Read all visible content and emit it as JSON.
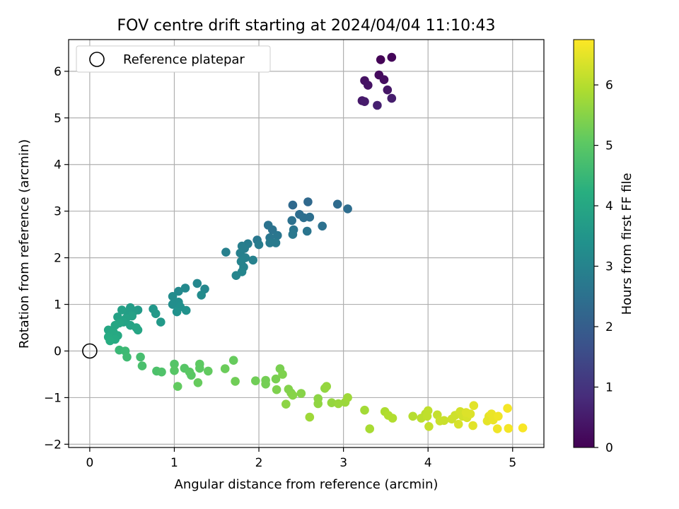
{
  "chart_data": {
    "type": "scatter",
    "title": "FOV centre drift starting at 2024/04/04 11:10:43",
    "xlabel": "Angular distance from reference (arcmin)",
    "ylabel": "Rotation from reference (arcmin)",
    "xlim": [
      -0.25,
      5.37
    ],
    "ylim": [
      -2.07,
      6.68
    ],
    "xticks": [
      0,
      1,
      2,
      3,
      4,
      5
    ],
    "yticks": [
      -2,
      -1,
      0,
      1,
      2,
      3,
      4,
      5,
      6
    ],
    "grid": true,
    "legend": {
      "location": "upper-left",
      "entries": [
        "Reference platepar"
      ]
    },
    "reference_point": {
      "x": 0,
      "y": 0,
      "marker": "open-circle"
    },
    "colorbar": {
      "label": "Hours from first FF file",
      "colormap": "viridis",
      "range": [
        0,
        6.75
      ],
      "ticks": [
        0,
        1,
        2,
        3,
        4,
        5,
        6
      ]
    },
    "series": [
      {
        "points": [
          [
            3.44,
            6.25,
            0.05
          ],
          [
            3.57,
            6.3,
            0.1
          ],
          [
            3.42,
            5.92,
            0.2
          ],
          [
            3.48,
            5.82,
            0.25
          ],
          [
            3.25,
            5.8,
            0.3
          ],
          [
            3.29,
            5.7,
            0.35
          ],
          [
            3.52,
            5.6,
            0.4
          ],
          [
            3.22,
            5.37,
            0.45
          ],
          [
            3.25,
            5.35,
            0.5
          ],
          [
            3.57,
            5.42,
            0.55
          ],
          [
            3.4,
            5.27,
            0.6
          ],
          [
            2.58,
            3.2,
            2.3
          ],
          [
            2.4,
            3.13,
            2.3
          ],
          [
            2.93,
            3.15,
            2.35
          ],
          [
            3.05,
            3.05,
            2.4
          ],
          [
            2.48,
            2.93,
            2.4
          ],
          [
            2.53,
            2.86,
            2.45
          ],
          [
            2.6,
            2.87,
            2.45
          ],
          [
            2.39,
            2.8,
            2.5
          ],
          [
            2.75,
            2.68,
            2.5
          ],
          [
            2.11,
            2.7,
            2.55
          ],
          [
            2.16,
            2.6,
            2.55
          ],
          [
            2.57,
            2.57,
            2.6
          ],
          [
            2.41,
            2.6,
            2.6
          ],
          [
            2.22,
            2.48,
            2.65
          ],
          [
            2.13,
            2.43,
            2.65
          ],
          [
            2.4,
            2.5,
            2.7
          ],
          [
            1.98,
            2.38,
            2.7
          ],
          [
            2.13,
            2.32,
            2.75
          ],
          [
            2.2,
            2.32,
            2.75
          ],
          [
            1.87,
            2.3,
            2.8
          ],
          [
            2.0,
            2.28,
            2.8
          ],
          [
            1.8,
            2.25,
            2.85
          ],
          [
            1.83,
            2.2,
            2.85
          ],
          [
            1.61,
            2.12,
            2.9
          ],
          [
            1.78,
            2.1,
            2.9
          ],
          [
            1.84,
            2.0,
            2.95
          ],
          [
            1.93,
            1.95,
            2.95
          ],
          [
            1.79,
            1.92,
            3.0
          ],
          [
            1.82,
            1.8,
            3.0
          ],
          [
            1.8,
            1.7,
            3.05
          ],
          [
            1.73,
            1.62,
            3.05
          ],
          [
            1.27,
            1.45,
            3.1
          ],
          [
            1.36,
            1.33,
            3.1
          ],
          [
            1.13,
            1.35,
            3.15
          ],
          [
            1.05,
            1.28,
            3.15
          ],
          [
            1.32,
            1.2,
            3.2
          ],
          [
            0.98,
            1.17,
            3.25
          ],
          [
            1.05,
            1.05,
            3.3
          ],
          [
            0.98,
            1.0,
            3.3
          ],
          [
            1.07,
            0.95,
            3.35
          ],
          [
            1.03,
            0.84,
            3.4
          ],
          [
            1.14,
            0.87,
            3.4
          ],
          [
            0.75,
            0.9,
            3.55
          ],
          [
            0.78,
            0.8,
            3.6
          ],
          [
            0.84,
            0.62,
            3.6
          ],
          [
            0.57,
            0.88,
            3.65
          ],
          [
            0.48,
            0.93,
            3.7
          ],
          [
            0.52,
            0.85,
            3.7
          ],
          [
            0.45,
            0.82,
            3.75
          ],
          [
            0.38,
            0.88,
            3.8
          ],
          [
            0.5,
            0.75,
            3.8
          ],
          [
            0.43,
            0.7,
            3.85
          ],
          [
            0.33,
            0.73,
            3.85
          ],
          [
            0.4,
            0.62,
            3.9
          ],
          [
            0.48,
            0.55,
            3.9
          ],
          [
            0.55,
            0.5,
            3.95
          ],
          [
            0.57,
            0.45,
            3.95
          ],
          [
            0.35,
            0.6,
            3.95
          ],
          [
            0.3,
            0.55,
            4.0
          ],
          [
            0.22,
            0.45,
            4.0
          ],
          [
            0.28,
            0.4,
            4.05
          ],
          [
            0.33,
            0.33,
            4.05
          ],
          [
            0.22,
            0.3,
            4.1
          ],
          [
            0.3,
            0.25,
            4.1
          ],
          [
            0.24,
            0.22,
            4.15
          ],
          [
            0.35,
            0.02,
            4.5
          ],
          [
            0.42,
            0.0,
            4.55
          ],
          [
            0.44,
            -0.13,
            4.6
          ],
          [
            0.6,
            -0.13,
            4.7
          ],
          [
            0.62,
            -0.32,
            4.75
          ],
          [
            0.79,
            -0.43,
            4.8
          ],
          [
            0.85,
            -0.45,
            4.85
          ],
          [
            1.0,
            -0.28,
            4.9
          ],
          [
            1.12,
            -0.37,
            4.95
          ],
          [
            1.0,
            -0.42,
            4.95
          ],
          [
            1.18,
            -0.45,
            5.0
          ],
          [
            1.2,
            -0.52,
            5.0
          ],
          [
            1.3,
            -0.28,
            5.05
          ],
          [
            1.3,
            -0.37,
            5.05
          ],
          [
            1.4,
            -0.43,
            5.1
          ],
          [
            1.04,
            -0.76,
            5.1
          ],
          [
            1.28,
            -0.68,
            5.15
          ],
          [
            1.7,
            -0.2,
            5.15
          ],
          [
            1.6,
            -0.38,
            5.2
          ],
          [
            1.72,
            -0.65,
            5.25
          ],
          [
            1.96,
            -0.64,
            5.25
          ],
          [
            2.08,
            -0.63,
            5.3
          ],
          [
            2.08,
            -0.71,
            5.3
          ],
          [
            2.2,
            -0.6,
            5.35
          ],
          [
            2.25,
            -0.38,
            5.35
          ],
          [
            2.28,
            -0.5,
            5.4
          ],
          [
            2.21,
            -0.83,
            5.4
          ],
          [
            2.35,
            -0.82,
            5.45
          ],
          [
            2.38,
            -0.9,
            5.45
          ],
          [
            2.4,
            -0.95,
            5.5
          ],
          [
            2.5,
            -0.91,
            5.5
          ],
          [
            2.32,
            -1.14,
            5.55
          ],
          [
            2.7,
            -1.02,
            5.55
          ],
          [
            2.7,
            -1.13,
            5.6
          ],
          [
            2.78,
            -0.8,
            5.6
          ],
          [
            2.8,
            -0.76,
            5.65
          ],
          [
            2.86,
            -1.11,
            5.65
          ],
          [
            2.94,
            -1.13,
            5.7
          ],
          [
            3.02,
            -1.1,
            5.7
          ],
          [
            3.05,
            -1.0,
            5.75
          ],
          [
            2.6,
            -1.42,
            5.75
          ],
          [
            3.25,
            -1.27,
            5.8
          ],
          [
            3.31,
            -1.67,
            5.85
          ],
          [
            3.49,
            -1.3,
            5.9
          ],
          [
            3.53,
            -1.38,
            5.95
          ],
          [
            3.58,
            -1.44,
            5.95
          ],
          [
            3.82,
            -1.4,
            6.0
          ],
          [
            3.92,
            -1.44,
            6.05
          ],
          [
            3.97,
            -1.35,
            6.05
          ],
          [
            4.0,
            -1.28,
            6.1
          ],
          [
            3.99,
            -1.4,
            6.1
          ],
          [
            4.01,
            -1.62,
            6.15
          ],
          [
            4.11,
            -1.37,
            6.15
          ],
          [
            4.14,
            -1.5,
            6.2
          ],
          [
            4.19,
            -1.49,
            6.2
          ],
          [
            4.28,
            -1.46,
            6.25
          ],
          [
            4.32,
            -1.38,
            6.25
          ],
          [
            4.38,
            -1.3,
            6.3
          ],
          [
            4.41,
            -1.4,
            6.3
          ],
          [
            4.36,
            -1.57,
            6.35
          ],
          [
            4.46,
            -1.43,
            6.35
          ],
          [
            4.45,
            -1.32,
            6.4
          ],
          [
            4.5,
            -1.35,
            6.4
          ],
          [
            4.54,
            -1.17,
            6.45
          ],
          [
            4.53,
            -1.6,
            6.45
          ],
          [
            4.7,
            -1.5,
            6.5
          ],
          [
            4.72,
            -1.4,
            6.5
          ],
          [
            4.75,
            -1.35,
            6.55
          ],
          [
            4.77,
            -1.48,
            6.55
          ],
          [
            4.83,
            -1.4,
            6.6
          ],
          [
            4.82,
            -1.67,
            6.6
          ],
          [
            4.94,
            -1.23,
            6.65
          ],
          [
            4.95,
            -1.66,
            6.65
          ],
          [
            5.12,
            -1.65,
            6.7
          ]
        ]
      }
    ]
  }
}
